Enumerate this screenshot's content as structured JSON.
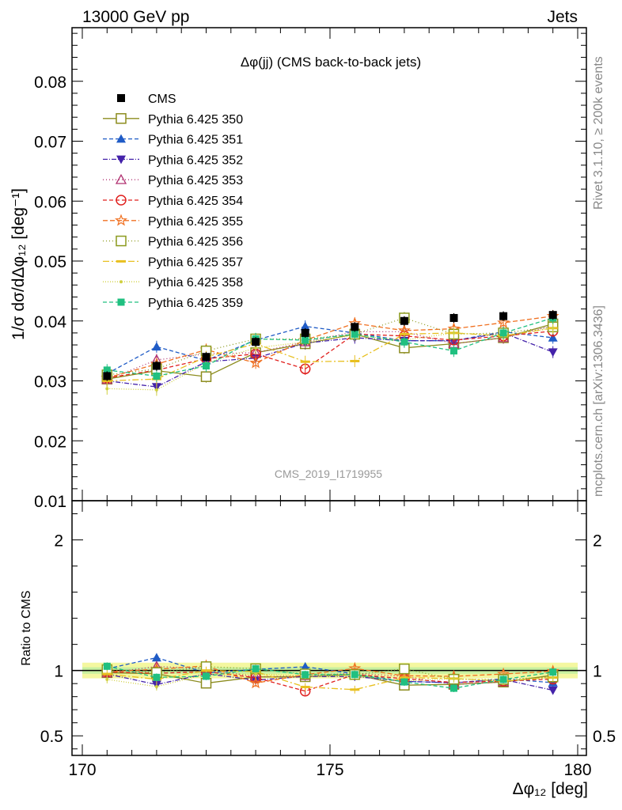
{
  "header": {
    "energy": "13000 GeV pp",
    "process": "Jets"
  },
  "side": {
    "rivet": "Rivet 3.1.10, ≥ 200k events",
    "mcplots": "mcplots.cern.ch [arXiv:1306.3436]"
  },
  "plot": {
    "title": "Δφ(jj) (CMS back-to-back jets)",
    "annotation": "CMS_2019_I1719955",
    "ylabel_main": "1/σ dσ/dΔφ₁₂ [deg⁻¹]",
    "ylabel_ratio": "Ratio to CMS",
    "xlabel": "Δφ₁₂ [deg]"
  },
  "chart_data": {
    "type": "scatter",
    "title": "Δφ(jj) (CMS back-to-back jets)",
    "xlabel": "Δφ12 [deg]",
    "ylabel": "1/σ dσ/dΔφ12 [deg⁻¹]",
    "xlim": [
      170,
      180
    ],
    "ylim": [
      0.01,
      0.09
    ],
    "ratio_ylim": [
      0.35,
      2.3
    ],
    "x_ticks": [
      "170",
      "175",
      "180"
    ],
    "y_ticks": [
      "0.01",
      "0.02",
      "0.03",
      "0.04",
      "0.05",
      "0.06",
      "0.07",
      "0.08"
    ],
    "ratio_ticks": [
      "0.5",
      "1",
      "2"
    ],
    "x": [
      170.5,
      171.5,
      172.5,
      173.5,
      174.5,
      175.5,
      176.5,
      177.5,
      178.5,
      179.5
    ],
    "data": {
      "name": "CMS",
      "values": [
        0.0308,
        0.0325,
        0.034,
        0.0365,
        0.038,
        0.039,
        0.04,
        0.0405,
        0.0408,
        0.041
      ]
    },
    "series": [
      {
        "name": "Pythia 6.425 350",
        "color": "#8c8c1e",
        "marker": "square-open",
        "dash": "solid",
        "values": [
          0.0303,
          0.0317,
          0.0307,
          0.0347,
          0.0362,
          0.0378,
          0.0355,
          0.0362,
          0.0372,
          0.0395
        ]
      },
      {
        "name": "Pythia 6.425 351",
        "color": "#1f5bc6",
        "marker": "triangle-up",
        "dash": "5,3",
        "values": [
          0.0312,
          0.0357,
          0.0334,
          0.0368,
          0.0391,
          0.038,
          0.0367,
          0.0367,
          0.0382,
          0.0372
        ]
      },
      {
        "name": "Pythia 6.425 352",
        "color": "#4422aa",
        "marker": "triangle-down",
        "dash": "6,2,1,2",
        "values": [
          0.03,
          0.029,
          0.0332,
          0.0338,
          0.0363,
          0.0372,
          0.0367,
          0.0367,
          0.038,
          0.0348
        ]
      },
      {
        "name": "Pythia 6.425 353",
        "color": "#b03070",
        "marker": "triangle-open",
        "dash": "1,3",
        "values": [
          0.0302,
          0.0335,
          0.0345,
          0.0347,
          0.0365,
          0.0382,
          0.0382,
          0.0362,
          0.0372,
          0.0392
        ]
      },
      {
        "name": "Pythia 6.425 354",
        "color": "#e0201e",
        "marker": "circle-open",
        "dash": "5,3",
        "values": [
          0.0305,
          0.0318,
          0.0337,
          0.0345,
          0.032,
          0.0378,
          0.0375,
          0.0368,
          0.0375,
          0.0383
        ]
      },
      {
        "name": "Pythia 6.425 355",
        "color": "#f07020",
        "marker": "star-open",
        "dash": "6,3",
        "values": [
          0.0305,
          0.0328,
          0.0352,
          0.033,
          0.0368,
          0.0396,
          0.0384,
          0.0387,
          0.0397,
          0.0408
        ]
      },
      {
        "name": "Pythia 6.425 356",
        "color": "#8c9a1e",
        "marker": "square-open",
        "dash": "1,3",
        "values": [
          0.031,
          0.032,
          0.035,
          0.037,
          0.037,
          0.0378,
          0.0405,
          0.0378,
          0.038,
          0.039
        ]
      },
      {
        "name": "Pythia 6.425 357",
        "color": "#e8c020",
        "marker": "dash",
        "dash": "8,3,2,3",
        "values": [
          0.03,
          0.0303,
          0.034,
          0.0362,
          0.0332,
          0.0333,
          0.0378,
          0.038,
          0.0375,
          0.0388
        ]
      },
      {
        "name": "Pythia 6.425 358",
        "color": "#d0d040",
        "marker": "dot",
        "dash": "1,2",
        "values": [
          0.0287,
          0.0285,
          0.033,
          0.0355,
          0.0365,
          0.0376,
          0.0368,
          0.038,
          0.0376,
          0.0388
        ]
      },
      {
        "name": "Pythia 6.425 359",
        "color": "#20c080",
        "marker": "square-filled",
        "dash": "5,3",
        "values": [
          0.0318,
          0.0308,
          0.0325,
          0.037,
          0.0368,
          0.0378,
          0.0365,
          0.035,
          0.038,
          0.0405
        ]
      }
    ]
  }
}
